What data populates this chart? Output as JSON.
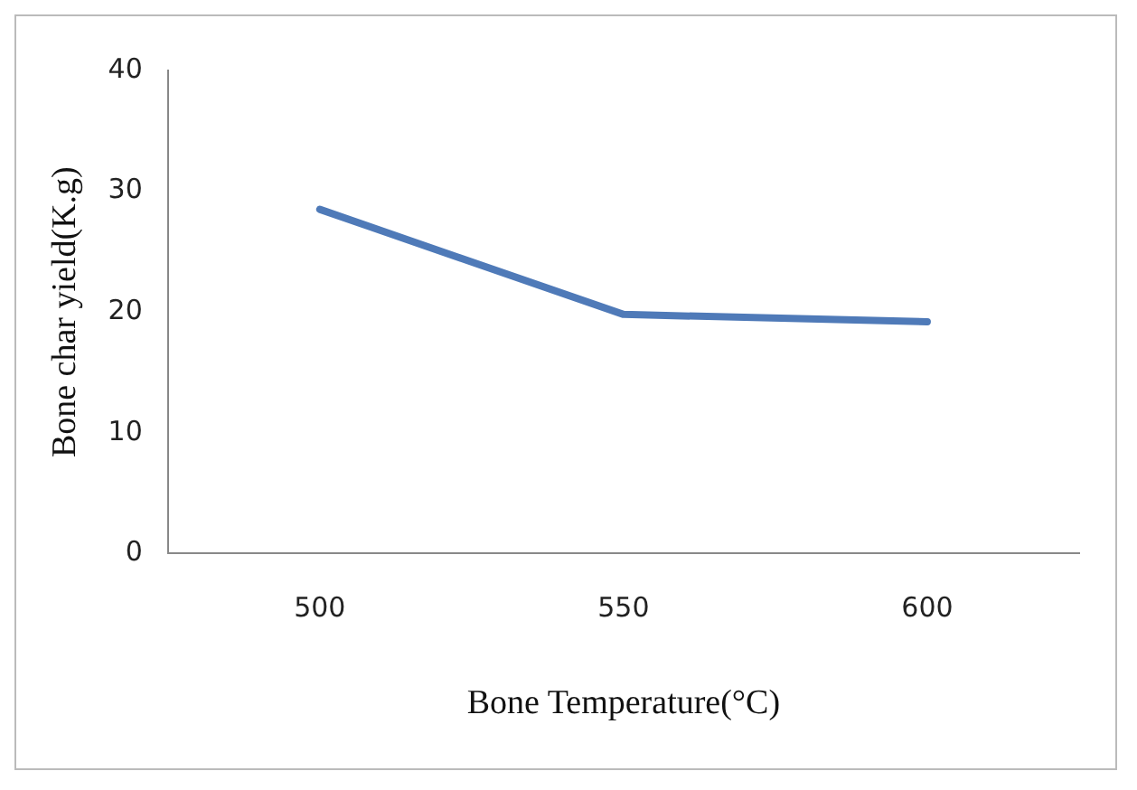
{
  "chart_data": {
    "type": "line",
    "xlabel": "Bone Temperature(°C)",
    "ylabel": "Bone char yield(K.g)",
    "categories": [
      "500",
      "550",
      "600"
    ],
    "series": [
      {
        "color": "#4f7ab8",
        "values": [
          28.5,
          19.8,
          19.2
        ]
      }
    ],
    "ylim": [
      0,
      40
    ],
    "yticks": [
      0,
      10,
      20,
      30,
      40
    ],
    "grid": false,
    "legend": false,
    "marker": "none",
    "line_style": "solid"
  }
}
